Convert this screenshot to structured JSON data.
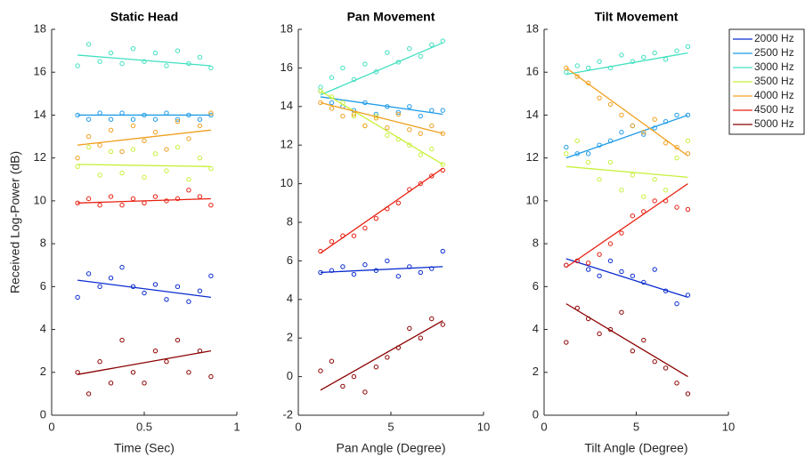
{
  "chart_data": [
    {
      "type": "scatter",
      "title": "Static Head",
      "x_label": "Time (Sec)",
      "y_label": "Received Log-Power (dB)",
      "xlim": [
        0,
        1
      ],
      "xticks": [
        0,
        0.5,
        1
      ],
      "ylim": [
        0,
        18
      ],
      "yticks": [
        0,
        2,
        4,
        6,
        8,
        10,
        12,
        14,
        16,
        18
      ],
      "x": [
        0.14,
        0.2,
        0.26,
        0.32,
        0.38,
        0.44,
        0.5,
        0.56,
        0.62,
        0.68,
        0.74,
        0.8,
        0.86
      ],
      "fit_x": [
        0.14,
        0.86
      ],
      "series": [
        {
          "color": "#0a2ccf",
          "values": [
            5.5,
            6.6,
            6.0,
            6.4,
            6.9,
            6.0,
            5.7,
            6.1,
            5.4,
            6.0,
            5.3,
            5.8,
            6.5
          ],
          "fit": [
            6.3,
            5.5
          ]
        },
        {
          "color": "#1e9be8",
          "values": [
            14.0,
            13.8,
            14.1,
            13.8,
            14.1,
            13.8,
            14.0,
            13.8,
            14.1,
            13.8,
            14.0,
            13.8,
            14.0
          ],
          "fit": [
            14.0,
            14.0
          ]
        },
        {
          "color": "#40e0c0",
          "values": [
            16.3,
            17.3,
            16.5,
            16.9,
            16.4,
            17.1,
            16.5,
            16.9,
            16.3,
            17.0,
            16.4,
            16.7,
            16.2
          ],
          "fit": [
            16.8,
            16.3
          ]
        },
        {
          "color": "#c8f03c",
          "values": [
            11.6,
            12.5,
            11.2,
            12.3,
            11.3,
            12.4,
            11.1,
            12.2,
            11.4,
            12.5,
            11.0,
            12.0,
            11.5
          ],
          "fit": [
            11.7,
            11.6
          ]
        },
        {
          "color": "#f0a020",
          "values": [
            12.0,
            13.0,
            12.6,
            13.3,
            12.3,
            13.5,
            12.8,
            13.2,
            12.4,
            13.7,
            12.9,
            13.5,
            14.1
          ],
          "fit": [
            12.6,
            13.3
          ]
        },
        {
          "color": "#e82010",
          "values": [
            9.9,
            10.1,
            9.8,
            10.2,
            9.8,
            10.1,
            9.9,
            10.2,
            10.0,
            10.1,
            10.5,
            10.2,
            9.8
          ],
          "fit": [
            9.9,
            10.1
          ]
        },
        {
          "color": "#8b0000",
          "values": [
            2.0,
            1.0,
            2.5,
            1.5,
            3.5,
            2.0,
            1.5,
            3.0,
            2.5,
            3.5,
            2.0,
            3.0,
            1.8
          ],
          "fit": [
            1.9,
            3.0
          ]
        }
      ]
    },
    {
      "type": "scatter",
      "title": "Pan Movement",
      "x_label": "Pan Angle (Degree)",
      "xlim": [
        0,
        10
      ],
      "xticks": [
        0,
        5,
        10
      ],
      "ylim": [
        -2,
        18
      ],
      "yticks": [
        -2,
        0,
        2,
        4,
        6,
        8,
        10,
        12,
        14,
        16,
        18
      ],
      "x": [
        1.2,
        1.8,
        2.4,
        3.0,
        3.6,
        4.2,
        4.8,
        5.4,
        6.0,
        6.6,
        7.2,
        7.8
      ],
      "fit_x": [
        1.2,
        7.8
      ],
      "series": [
        {
          "color": "#0a2ccf",
          "values": [
            5.4,
            5.5,
            5.7,
            5.3,
            5.8,
            5.5,
            6.0,
            5.2,
            5.7,
            5.4,
            5.6,
            6.5
          ],
          "fit": [
            5.4,
            5.7
          ]
        },
        {
          "color": "#1e9be8",
          "values": [
            14.8,
            14.2,
            14.0,
            13.8,
            14.2,
            13.6,
            14.0,
            13.7,
            14.0,
            13.5,
            13.8,
            13.8
          ],
          "fit": [
            14.5,
            13.6
          ]
        },
        {
          "color": "#40e0c0",
          "values": [
            15.0,
            15.5,
            16.0,
            15.4,
            16.2,
            15.8,
            16.8,
            16.3,
            17.0,
            16.6,
            17.2,
            17.4
          ],
          "fit": [
            14.6,
            17.3
          ]
        },
        {
          "color": "#c8f03c",
          "values": [
            14.8,
            14.5,
            14.2,
            13.5,
            13.0,
            13.5,
            12.5,
            12.3,
            12.0,
            11.5,
            11.8,
            11.0
          ],
          "fit": [
            14.8,
            11.0
          ]
        },
        {
          "color": "#f0a020",
          "values": [
            14.2,
            13.9,
            13.5,
            13.6,
            13.0,
            13.4,
            12.9,
            13.6,
            12.8,
            12.6,
            13.0,
            12.6
          ],
          "fit": [
            14.2,
            12.6
          ]
        },
        {
          "color": "#e82010",
          "values": [
            6.5,
            7.0,
            7.3,
            7.3,
            7.7,
            8.2,
            8.7,
            9.0,
            9.7,
            10.0,
            10.4,
            10.7
          ],
          "fit": [
            6.4,
            10.8
          ]
        },
        {
          "color": "#8b0000",
          "values": [
            0.3,
            0.8,
            -0.5,
            0.0,
            -0.8,
            0.5,
            1.0,
            1.5,
            2.5,
            2.0,
            3.0,
            2.7
          ],
          "fit": [
            -0.7,
            2.9
          ]
        }
      ]
    },
    {
      "type": "scatter",
      "title": "Tilt Movement",
      "x_label": "Tilt Angle (Degree)",
      "xlim": [
        0,
        10
      ],
      "xticks": [
        0,
        5,
        10
      ],
      "ylim": [
        0,
        18
      ],
      "yticks": [
        0,
        2,
        4,
        6,
        8,
        10,
        12,
        14,
        16,
        18
      ],
      "x": [
        1.2,
        1.8,
        2.4,
        3.0,
        3.6,
        4.2,
        4.8,
        5.4,
        6.0,
        6.6,
        7.2,
        7.8
      ],
      "fit_x": [
        1.2,
        7.8
      ],
      "series": [
        {
          "name": "2000 Hz",
          "color": "#0a2ccf",
          "values": [
            7.0,
            7.2,
            6.8,
            6.5,
            7.2,
            6.7,
            6.5,
            6.2,
            6.8,
            5.8,
            5.2,
            5.6
          ],
          "fit": [
            7.3,
            5.5
          ]
        },
        {
          "name": "2500 Hz",
          "color": "#1e9be8",
          "values": [
            12.5,
            12.2,
            12.2,
            12.6,
            12.8,
            13.2,
            13.5,
            13.1,
            13.4,
            13.7,
            14.0,
            14.0
          ],
          "fit": [
            12.0,
            14.0
          ]
        },
        {
          "name": "3000 Hz",
          "color": "#40e0c0",
          "values": [
            16.0,
            16.3,
            16.2,
            16.5,
            16.2,
            16.8,
            16.5,
            16.7,
            16.9,
            16.6,
            17.0,
            17.2
          ],
          "fit": [
            15.9,
            16.9
          ]
        },
        {
          "name": "3500 Hz",
          "color": "#c8f03c",
          "values": [
            12.2,
            12.8,
            11.8,
            11.0,
            11.8,
            10.5,
            11.2,
            10.2,
            11.0,
            10.5,
            12.0,
            12.8
          ],
          "fit": [
            11.6,
            11.1
          ]
        },
        {
          "name": "4000 Hz",
          "color": "#f0a020",
          "values": [
            16.2,
            15.8,
            15.5,
            14.8,
            14.5,
            14.0,
            13.5,
            13.2,
            13.8,
            12.7,
            12.5,
            12.2
          ],
          "fit": [
            16.2,
            12.1
          ]
        },
        {
          "name": "4500 Hz",
          "color": "#e82010",
          "values": [
            7.0,
            7.2,
            7.1,
            7.5,
            8.0,
            8.5,
            9.3,
            9.5,
            10.0,
            10.0,
            9.7,
            9.6
          ],
          "fit": [
            6.9,
            10.8
          ]
        },
        {
          "name": "5000 Hz",
          "color": "#8b0000",
          "values": [
            3.4,
            5.0,
            4.5,
            3.8,
            4.0,
            4.8,
            3.0,
            3.5,
            2.5,
            2.2,
            1.5,
            1.0
          ],
          "fit": [
            5.2,
            1.8
          ]
        }
      ]
    }
  ]
}
